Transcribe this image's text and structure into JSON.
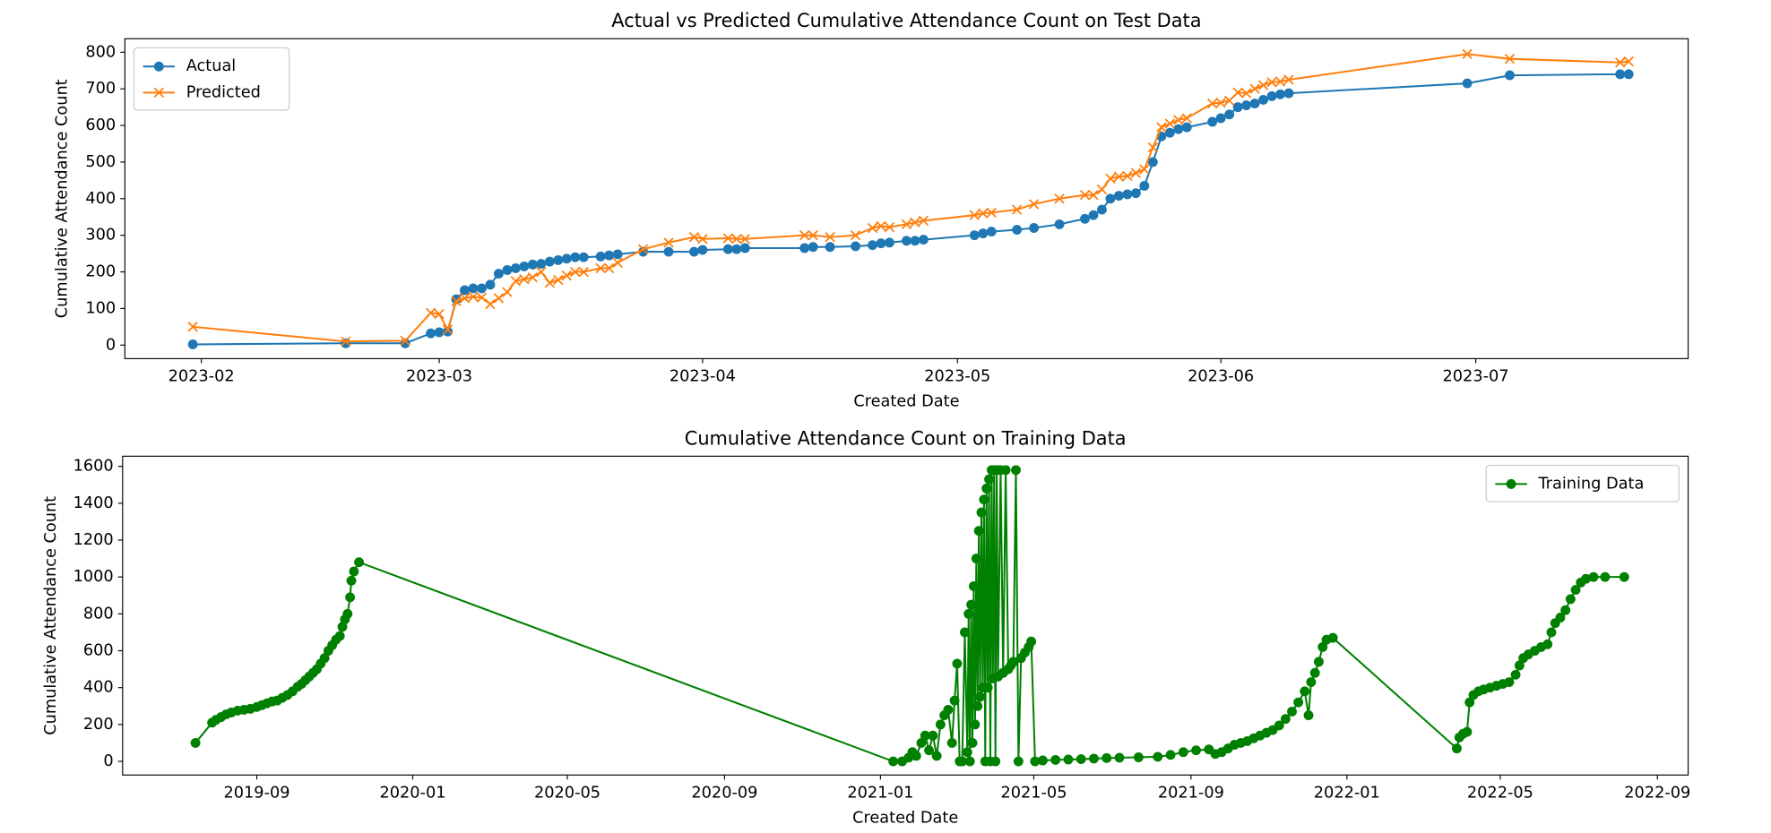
{
  "chart_data": [
    {
      "type": "line",
      "title": "Actual vs Predicted Cumulative Attendance Count on Test Data",
      "xlabel": "Created Date",
      "ylabel": "Cumulative Attendance Count",
      "x": [
        19388,
        19406,
        19413,
        19416,
        19417,
        19418,
        19419,
        19420,
        19421,
        19422,
        19423,
        19424,
        19425,
        19426,
        19427,
        19428,
        19429,
        19430,
        19431,
        19432,
        19433,
        19434,
        19436,
        19437,
        19438,
        19441,
        19444,
        19447,
        19448,
        19451,
        19452,
        19453,
        19460,
        19461,
        19463,
        19466,
        19468,
        19469,
        19470,
        19472,
        19473,
        19474,
        19480,
        19481,
        19482,
        19485,
        19487,
        19490,
        19493,
        19494,
        19495,
        19496,
        19497,
        19498,
        19499,
        19500,
        19501,
        19502,
        19503,
        19504,
        19505,
        19508,
        19509,
        19510,
        19511,
        19512,
        19513,
        19514,
        19515,
        19516,
        19517,
        19538,
        19543,
        19556,
        19557
      ],
      "series": [
        {
          "name": "Actual",
          "color": "#1f77b4",
          "marker": "o",
          "values": [
            2,
            5,
            5,
            32,
            35,
            37,
            125,
            150,
            155,
            155,
            165,
            195,
            205,
            210,
            215,
            220,
            222,
            228,
            232,
            236,
            240,
            240,
            242,
            245,
            248,
            255,
            255,
            255,
            260,
            262,
            262,
            265,
            265,
            268,
            268,
            270,
            273,
            278,
            280,
            285,
            285,
            288,
            300,
            305,
            310,
            315,
            320,
            330,
            345,
            355,
            370,
            400,
            408,
            412,
            415,
            435,
            500,
            570,
            580,
            590,
            595,
            610,
            620,
            630,
            650,
            655,
            660,
            670,
            680,
            685,
            688,
            715,
            737,
            740,
            740
          ]
        },
        {
          "name": "Predicted",
          "color": "#ff7f0e",
          "marker": "x",
          "values": [
            50,
            10,
            12,
            88,
            85,
            42,
            120,
            128,
            132,
            130,
            112,
            128,
            145,
            175,
            180,
            185,
            200,
            170,
            178,
            190,
            200,
            200,
            210,
            210,
            225,
            262,
            280,
            295,
            290,
            292,
            290,
            290,
            300,
            300,
            295,
            300,
            320,
            325,
            322,
            330,
            335,
            340,
            355,
            360,
            362,
            370,
            385,
            400,
            410,
            410,
            425,
            455,
            460,
            462,
            470,
            480,
            540,
            595,
            605,
            615,
            620,
            660,
            662,
            668,
            690,
            688,
            700,
            710,
            718,
            720,
            725,
            795,
            782,
            772,
            775
          ]
        }
      ],
      "xlim": [
        19380,
        19564
      ],
      "xticks": [
        {
          "value": 19389,
          "label": "2023-02"
        },
        {
          "value": 19417,
          "label": "2023-03"
        },
        {
          "value": 19448,
          "label": "2023-04"
        },
        {
          "value": 19478,
          "label": "2023-05"
        },
        {
          "value": 19509,
          "label": "2023-06"
        },
        {
          "value": 19539,
          "label": "2023-07"
        }
      ],
      "ylim": [
        -37,
        837
      ],
      "yticks": [
        0,
        100,
        200,
        300,
        400,
        500,
        600,
        700,
        800
      ],
      "grid": false,
      "legend": "upper left"
    },
    {
      "type": "line",
      "title": "Cumulative Attendance Count on Training Data",
      "xlabel": "Created Date",
      "ylabel": "Cumulative Attendance Count",
      "x": [
        18092,
        18105,
        18108,
        18112,
        18116,
        18120,
        18125,
        18130,
        18135,
        18140,
        18144,
        18148,
        18152,
        18156,
        18160,
        18164,
        18168,
        18172,
        18175,
        18178,
        18181,
        18184,
        18187,
        18190,
        18193,
        18196,
        18199,
        18202,
        18205,
        18207,
        18209,
        18211,
        18213,
        18214,
        18216,
        18220,
        18638,
        18645,
        18650,
        18653,
        18656,
        18660,
        18663,
        18666,
        18669,
        18672,
        18675,
        18678,
        18681,
        18684,
        18686,
        18688,
        18690,
        18692,
        18694,
        18696,
        18697,
        18698,
        18699,
        18700,
        18701,
        18702,
        18703,
        18704,
        18705,
        18706,
        18707,
        18708,
        18709,
        18710,
        18711,
        18712,
        18713,
        18714,
        18715,
        18716,
        18717,
        18718,
        18719,
        18720,
        18722,
        18724,
        18726,
        18728,
        18730,
        18732,
        18734,
        18736,
        18738,
        18741,
        18744,
        18746,
        18749,
        18755,
        18765,
        18775,
        18785,
        18795,
        18805,
        18815,
        18830,
        18845,
        18855,
        18865,
        18875,
        18885,
        18890,
        18895,
        18900,
        18905,
        18910,
        18915,
        18920,
        18925,
        18930,
        18935,
        18940,
        18945,
        18950,
        18955,
        18960,
        18963,
        18965,
        18968,
        18971,
        18974,
        18977,
        18982,
        19079,
        19081,
        19084,
        19087,
        19089,
        19092,
        19096,
        19100,
        19105,
        19110,
        19115,
        19120,
        19125,
        19128,
        19131,
        19135,
        19140,
        19145,
        19150,
        19153,
        19156,
        19160,
        19164,
        19168,
        19172,
        19176,
        19180,
        19186,
        19195,
        19210
      ],
      "series": [
        {
          "name": "Training Data",
          "color": "#008000",
          "marker": "o",
          "values": [
            100,
            210,
            225,
            240,
            255,
            265,
            275,
            280,
            285,
            295,
            305,
            315,
            325,
            330,
            345,
            360,
            380,
            405,
            420,
            440,
            460,
            480,
            500,
            530,
            560,
            600,
            630,
            660,
            680,
            730,
            770,
            800,
            890,
            980,
            1030,
            1080,
            0,
            0,
            20,
            50,
            30,
            100,
            140,
            60,
            140,
            30,
            200,
            250,
            280,
            100,
            330,
            530,
            0,
            0,
            700,
            50,
            800,
            0,
            850,
            100,
            950,
            200,
            1100,
            300,
            1250,
            350,
            1350,
            400,
            1420,
            0,
            1480,
            400,
            1530,
            0,
            1580,
            450,
            1580,
            0,
            1580,
            460,
            1580,
            480,
            1580,
            500,
            520,
            540,
            1580,
            0,
            560,
            590,
            620,
            650,
            0,
            5,
            8,
            10,
            12,
            15,
            18,
            20,
            22,
            25,
            35,
            50,
            60,
            65,
            40,
            50,
            70,
            90,
            100,
            110,
            125,
            140,
            155,
            170,
            195,
            230,
            270,
            320,
            380,
            250,
            430,
            480,
            540,
            620,
            660,
            670,
            70,
            130,
            150,
            160,
            320,
            360,
            380,
            390,
            400,
            410,
            420,
            430,
            470,
            520,
            560,
            580,
            600,
            620,
            635,
            700,
            750,
            780,
            820,
            880,
            930,
            970,
            990,
            1000,
            1000,
            1000
          ]
        }
      ],
      "xlim": [
        18035,
        19260
      ],
      "xticks": [
        {
          "value": 18140,
          "label": "2019-09"
        },
        {
          "value": 18262,
          "label": "2020-01"
        },
        {
          "value": 18383,
          "label": "2020-05"
        },
        {
          "value": 18506,
          "label": "2020-09"
        },
        {
          "value": 18628,
          "label": "2021-01"
        },
        {
          "value": 18748,
          "label": "2021-05"
        },
        {
          "value": 18871,
          "label": "2021-09"
        },
        {
          "value": 18993,
          "label": "2022-01"
        },
        {
          "value": 19113,
          "label": "2022-05"
        },
        {
          "value": 19236,
          "label": "2022-09"
        }
      ],
      "ylim": [
        -74,
        1655
      ],
      "yticks": [
        0,
        200,
        400,
        600,
        800,
        1000,
        1200,
        1400,
        1600
      ],
      "grid": false,
      "legend": "upper right"
    }
  ]
}
